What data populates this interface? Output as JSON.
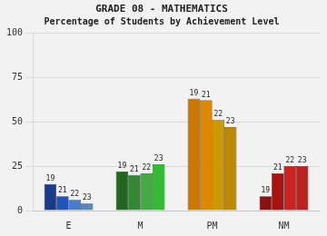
{
  "chart_data": {
    "type": "bar",
    "title": "GRADE 08 - MATHEMATICS",
    "subtitle": "Percentage of Students by Achievement Level",
    "categories": [
      "E",
      "M",
      "PM",
      "NM"
    ],
    "series": [
      {
        "name": "19",
        "values": [
          15,
          22,
          63,
          8
        ],
        "colors": [
          "#1a3a8a",
          "#226622",
          "#cc7700",
          "#881111"
        ]
      },
      {
        "name": "21",
        "values": [
          8,
          20,
          62,
          21
        ],
        "colors": [
          "#2255bb",
          "#338833",
          "#dd8800",
          "#aa1111"
        ]
      },
      {
        "name": "22",
        "values": [
          6,
          21,
          51,
          25
        ],
        "colors": [
          "#4a7bcc",
          "#44aa44",
          "#cc9900",
          "#cc2222"
        ]
      },
      {
        "name": "23",
        "values": [
          4,
          26,
          47,
          25
        ],
        "colors": [
          "#5588bb",
          "#33bb33",
          "#bb8800",
          "#bb2222"
        ]
      }
    ],
    "ylim": [
      0,
      100
    ],
    "yticks": [
      0,
      25,
      50,
      75,
      100
    ],
    "grid": true
  }
}
